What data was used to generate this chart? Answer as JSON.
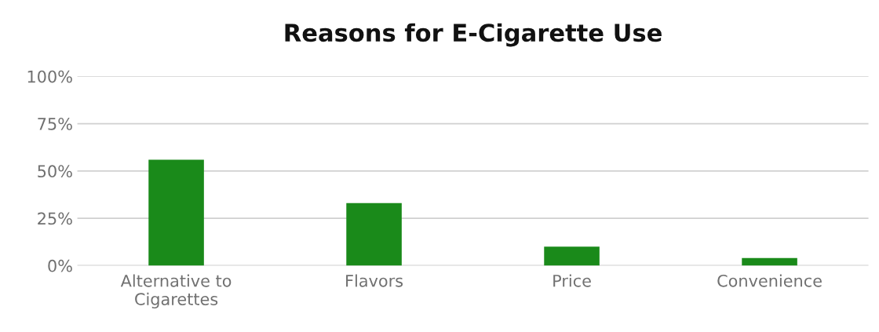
{
  "chart_data": {
    "type": "bar",
    "title": "Reasons for E-Cigarette Use",
    "categories": [
      "Alternative to\nCigarettes",
      "Flavors",
      "Price",
      "Convenience"
    ],
    "values": [
      56,
      33,
      10,
      4
    ],
    "color": "#1a8a1a",
    "ylim": [
      0,
      100
    ],
    "yticks": [
      {
        "value": 0,
        "label": "0%"
      },
      {
        "value": 25,
        "label": "25%"
      },
      {
        "value": 50,
        "label": "50%"
      },
      {
        "value": 75,
        "label": "75%"
      },
      {
        "value": 100,
        "label": "100%"
      }
    ],
    "grid": "y"
  }
}
